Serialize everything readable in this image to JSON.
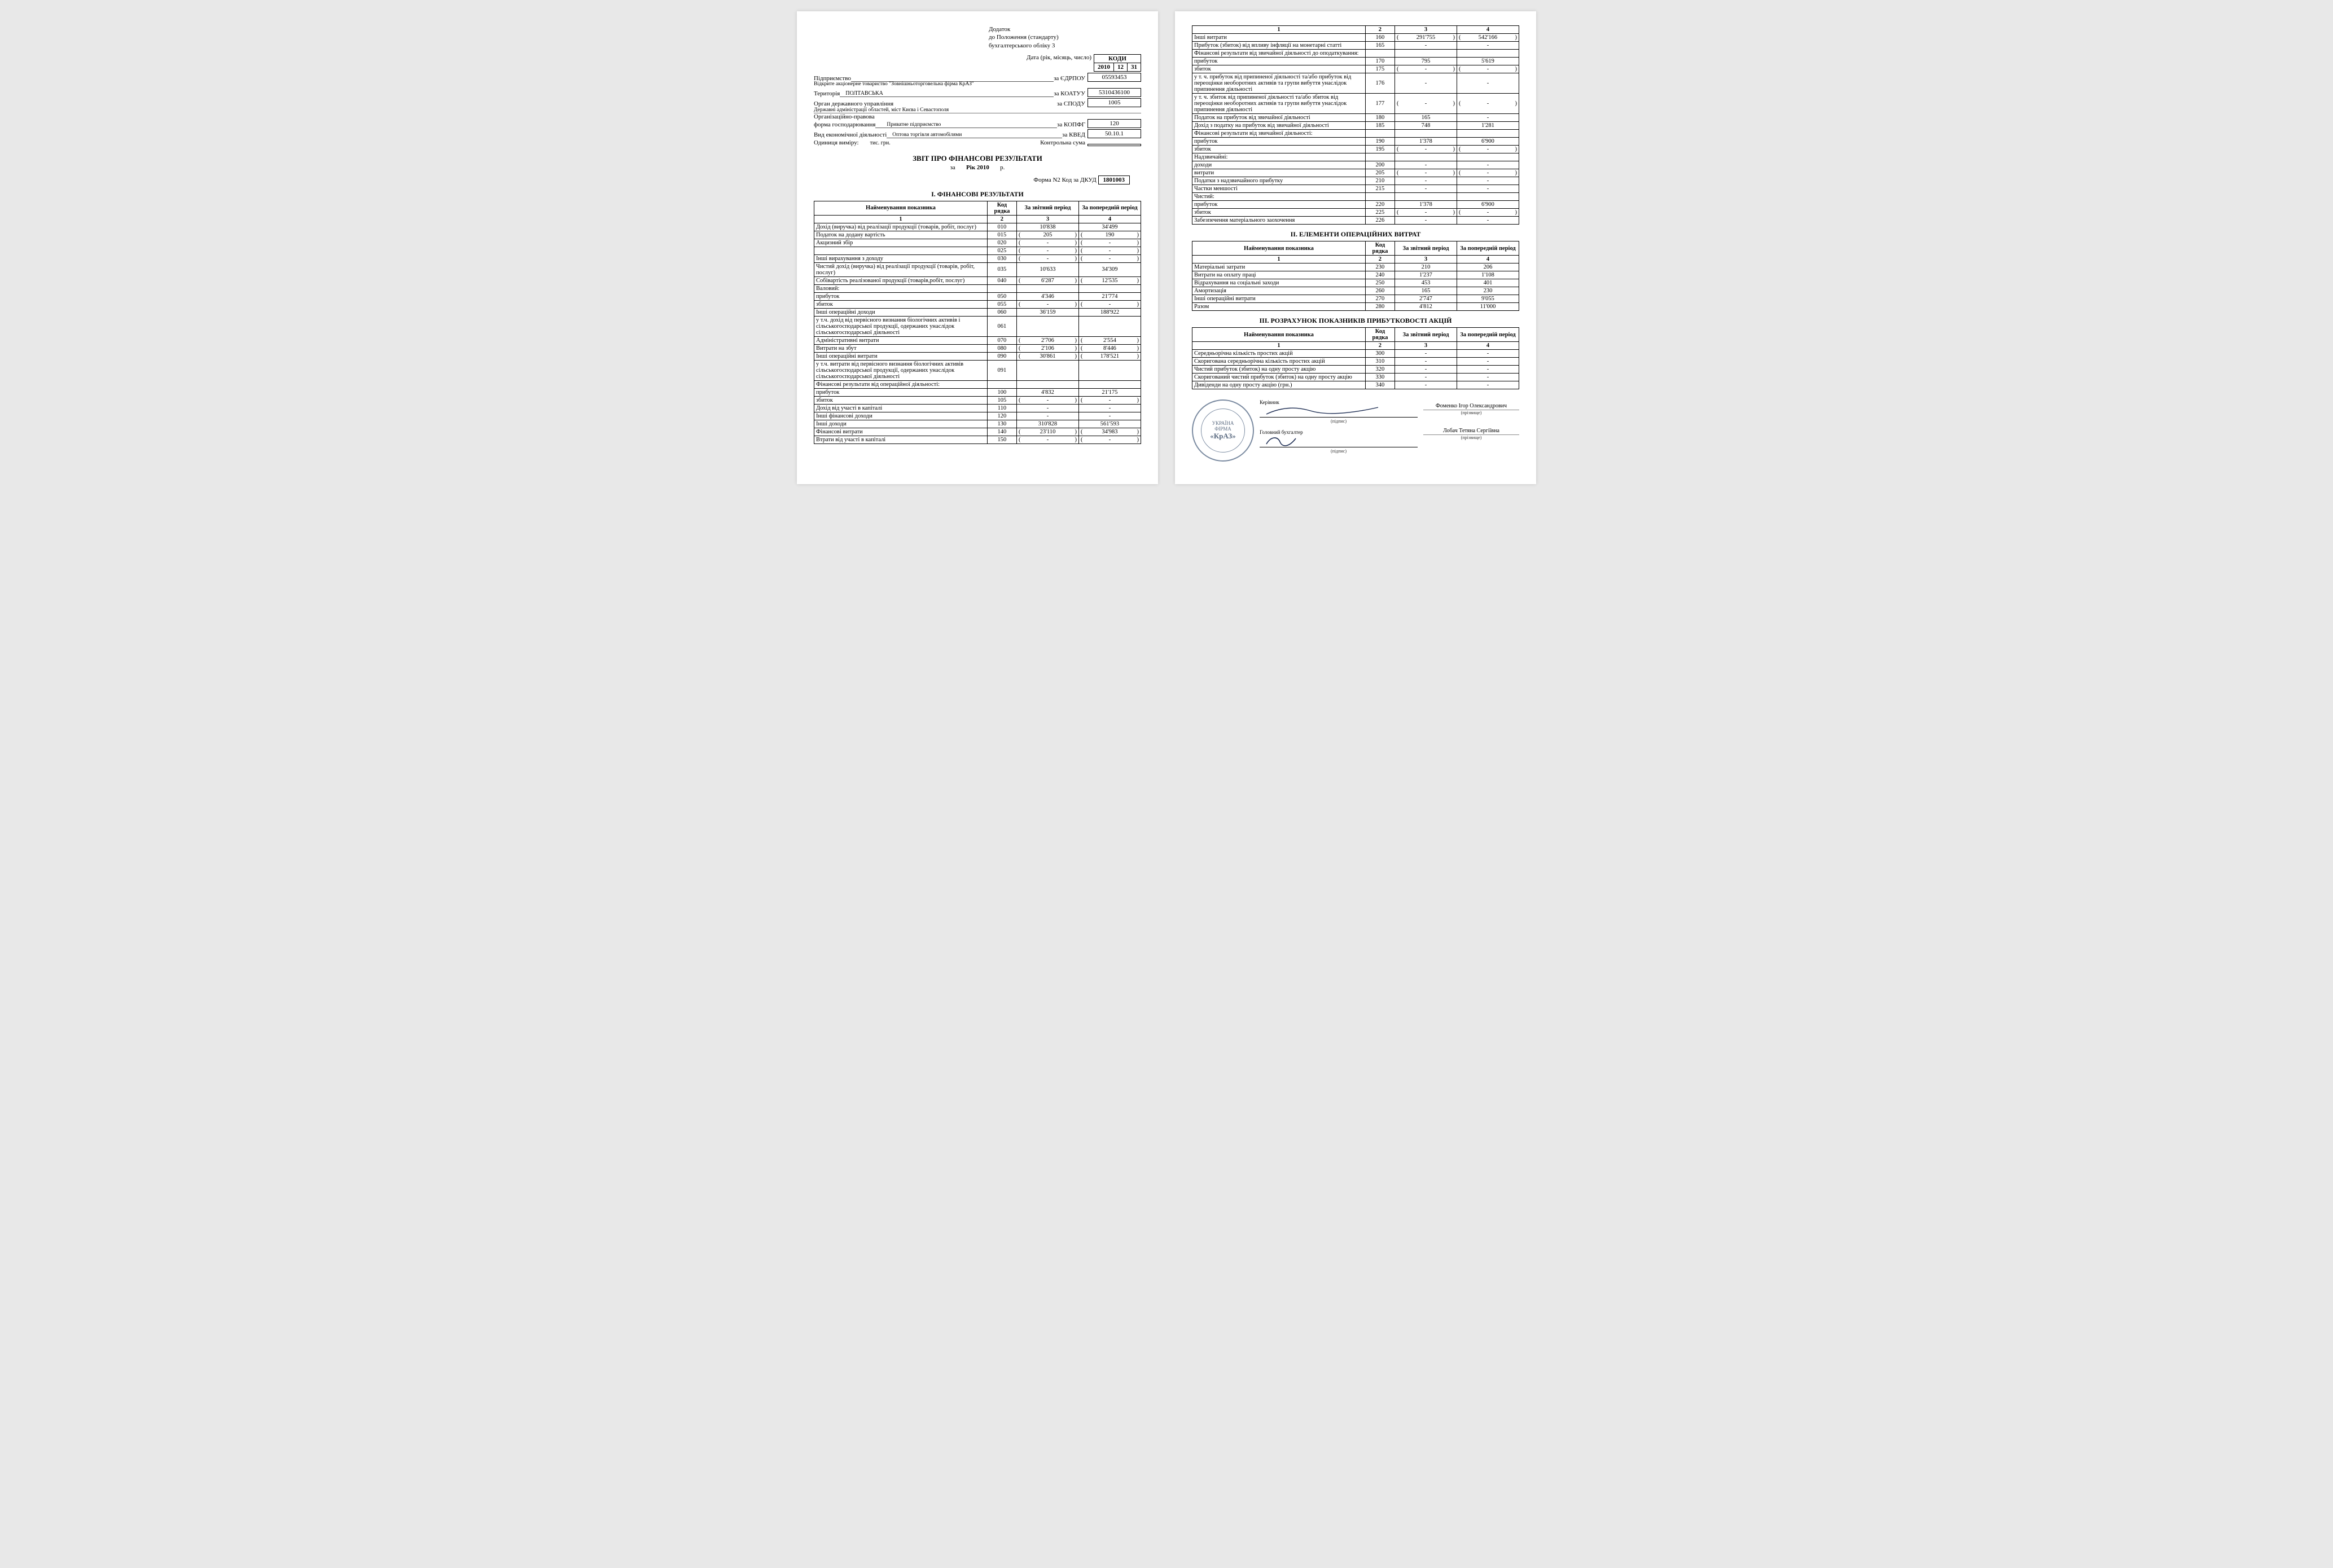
{
  "appendix": {
    "l1": "Додаток",
    "l2": "до Положення (стандарту)",
    "l3": "бухгалтерського обліку 3"
  },
  "codes_header": "КОДИ",
  "date_label": "Дата (рік, місяць, число)",
  "date": {
    "y": "2010",
    "m": "12",
    "d": "31"
  },
  "hdr": {
    "ent_label": "Підприємство",
    "ent_val": "Відкрите акціонерне товариство \"Зовнішньоторговельна фірма КрАЗ\"",
    "ent_code_label": "за ЄДРПОУ",
    "ent_code": "05593453",
    "terr_label": "Територія",
    "terr_val": "ПОЛТАВСЬКА",
    "terr_code_label": "за КОАТУУ",
    "terr_code": "5310436100",
    "org_label": "Орган державного управління",
    "org_val": "Державні адміністрації областей, міст Києва і Севастополя",
    "org_code_label": "за СПОДУ",
    "org_code": "1005",
    "form_label": "Організаційно-правова",
    "form_label2": "форма господарювання",
    "form_val": "Приватне підприємство",
    "form_code_label": "за КОПФГ",
    "form_code": "120",
    "act_label": "Вид економічної діяльності",
    "act_val": "Оптова торгівля автомобілями",
    "act_code_label": "за КВЕД",
    "act_code": "50.10.1",
    "unit_label": "Одиниця виміру:",
    "unit_val": "тис. грн.",
    "ctrl_label": "Контрольна сума",
    "ctrl_val": ""
  },
  "title": "ЗВІТ ПРО ФІНАНСОВІ РЕЗУЛЬТАТИ",
  "subtitle_prefix": "за",
  "subtitle_period": "Рік 2010",
  "subtitle_suffix": "р.",
  "form_n": "Форма N2  Код за ДКУД",
  "form_code": "1801003",
  "sect1": "І. ФІНАНСОВІ РЕЗУЛЬТАТИ",
  "cols": {
    "name": "Найменування показника",
    "code": "Код рядка",
    "cur": "За звітний період",
    "prev": "За попередній період",
    "n1": "1",
    "n2": "2",
    "n3": "3",
    "n4": "4"
  },
  "rows1": [
    {
      "name": "Дохід (виручка) від реалізації продукції (товарів, робіт, послуг)",
      "code": "010",
      "cur": "10'838",
      "prev": "34'499"
    },
    {
      "name": "Податок на додану вартість",
      "code": "015",
      "cur": "205",
      "prev": "190",
      "paren": true
    },
    {
      "name": "Акцизний збір",
      "code": "020",
      "cur": "-",
      "prev": "-",
      "paren": true
    },
    {
      "name": "",
      "code": "025",
      "cur": "-",
      "prev": "-",
      "paren": true
    },
    {
      "name": "Інші вирахування з доходу",
      "code": "030",
      "cur": "-",
      "prev": "-",
      "paren": true
    },
    {
      "name": "Чистий дохід (виручка) від реалізації продукції (товарів, робіт, послуг)",
      "code": "035",
      "cur": "10'633",
      "prev": "34'309"
    },
    {
      "name": "Собівартість реалізованої продукції (товарів,робіт, послуг)",
      "code": "040",
      "cur": "6'287",
      "prev": "12'535",
      "paren": true
    },
    {
      "name": "Валовий:",
      "plain": true
    },
    {
      "name": "прибуток",
      "indent": true,
      "code": "050",
      "cur": "4'346",
      "prev": "21'774"
    },
    {
      "name": "збиток",
      "indent": true,
      "code": "055",
      "cur": "-",
      "prev": "-",
      "paren": true
    },
    {
      "name": "Інші операційні доходи",
      "code": "060",
      "cur": "36'159",
      "prev": "188'922"
    },
    {
      "name": "у т.ч. дохід від первісного визнання біологічних активів і сільськогосподарської продукції, одержаних унаслідок сільськогосподарської діяльності",
      "indent": true,
      "code": "061",
      "cur": "",
      "prev": ""
    },
    {
      "name": "Адміністративні витрати",
      "code": "070",
      "cur": "2'706",
      "prev": "2'554",
      "paren": true
    },
    {
      "name": "Витрати на збут",
      "code": "080",
      "cur": "2'106",
      "prev": "8'446",
      "paren": true
    },
    {
      "name": "Інші операційні витрати",
      "code": "090",
      "cur": "30'861",
      "prev": "178'521",
      "paren": true
    },
    {
      "name": "у т.ч. витрати від первісного визнання біологічних активів сільськогосподарської продукції, одержаних унаслідок сільськогосподарської діяльності",
      "indent": true,
      "code": "091",
      "cur": "",
      "prev": ""
    },
    {
      "name": "Фінансові результати від операційної діяльності:",
      "plain": true
    },
    {
      "name": "прибуток",
      "indent": true,
      "code": "100",
      "cur": "4'832",
      "prev": "21'175"
    },
    {
      "name": "збиток",
      "indent": true,
      "code": "105",
      "cur": "-",
      "prev": "-",
      "paren": true
    },
    {
      "name": "Дохід від участі в капіталі",
      "code": "110",
      "cur": "-",
      "prev": "-"
    },
    {
      "name": "Інші фінансові доходи",
      "code": "120",
      "cur": "-",
      "prev": "-"
    },
    {
      "name": "Інші доходи",
      "code": "130",
      "cur": "310'828",
      "prev": "561'593"
    },
    {
      "name": "Фінансові витрати",
      "code": "140",
      "cur": "23'110",
      "prev": "34'983",
      "paren": true
    },
    {
      "name": "Втрати від участі в капіталі",
      "code": "150",
      "cur": "-",
      "prev": "-",
      "paren": true
    }
  ],
  "rows1b": [
    {
      "name": "Інші витрати",
      "code": "160",
      "cur": "291'755",
      "prev": "542'166",
      "paren": true
    },
    {
      "name": "Прибуток (збиток) від впливу інфляції на монетарні статті",
      "code": "165",
      "cur": "-",
      "prev": "-"
    },
    {
      "name": "Фінансові результати від звичайної діяльності до оподаткування:",
      "plain": true
    },
    {
      "name": "прибуток",
      "indent": true,
      "code": "170",
      "cur": "795",
      "prev": "5'619"
    },
    {
      "name": "збиток",
      "indent": true,
      "code": "175",
      "cur": "-",
      "prev": "-",
      "paren": true
    },
    {
      "name": "у т. ч. прибуток від припиненої діяльності та/або прибуток від переоцінки необоротних  активів та групи вибуття унаслідок припинення діяльності",
      "indent": true,
      "code": "176",
      "cur": "-",
      "prev": "-"
    },
    {
      "name": "у т. ч. збиток від припиненої діяльності та/або збиток від переоцінки необоротних активів та групи вибуття унаслідок припинення діяльності",
      "indent": true,
      "code": "177",
      "cur": "-",
      "prev": "-",
      "paren": true
    },
    {
      "name": "Податок на прибуток від звичайної діяльності",
      "code": "180",
      "cur": "165",
      "prev": "-"
    },
    {
      "name": "Дохід з податку на прибуток від звичайної діяльності",
      "code": "185",
      "cur": "748",
      "prev": "1'281"
    },
    {
      "name": "Фінансові результати від звичайної діяльності:",
      "plain": true
    },
    {
      "name": "прибуток",
      "indent": true,
      "code": "190",
      "cur": "1'378",
      "prev": "6'900"
    },
    {
      "name": "збиток",
      "indent": true,
      "code": "195",
      "cur": "-",
      "prev": "-",
      "paren": true
    },
    {
      "name": "Надзвичайні:",
      "plain": true
    },
    {
      "name": "доходи",
      "indent": true,
      "code": "200",
      "cur": "-",
      "prev": "-"
    },
    {
      "name": "витрати",
      "indent": true,
      "code": "205",
      "cur": "-",
      "prev": "-",
      "paren": true
    },
    {
      "name": "Податки з надзвичайного прибутку",
      "code": "210",
      "cur": "-",
      "prev": "-"
    },
    {
      "name": "Частки меншості",
      "code": "215",
      "cur": "-",
      "prev": "-"
    },
    {
      "name": "Чистий:",
      "plain": true
    },
    {
      "name": "прибуток",
      "indent": true,
      "code": "220",
      "cur": "1'378",
      "prev": "6'900"
    },
    {
      "name": "збиток",
      "indent": true,
      "code": "225",
      "cur": "-",
      "prev": "-",
      "paren": true
    },
    {
      "name": "Забезпечення матеріального заохочення",
      "code": "226",
      "cur": "-",
      "prev": "-"
    }
  ],
  "sect2": "ІІ. ЕЛЕМЕНТИ ОПЕРАЦІЙНИХ ВИТРАТ",
  "rows2": [
    {
      "name": "Матеріальні затрати",
      "code": "230",
      "cur": "210",
      "prev": "206"
    },
    {
      "name": "Витрати на оплату праці",
      "code": "240",
      "cur": "1'237",
      "prev": "1'108"
    },
    {
      "name": "Відрахування на соціальні заходи",
      "code": "250",
      "cur": "453",
      "prev": "401"
    },
    {
      "name": "Амортизація",
      "code": "260",
      "cur": "165",
      "prev": "230"
    },
    {
      "name": "Інші операційні витрати",
      "code": "270",
      "cur": "2'747",
      "prev": "9'055"
    },
    {
      "name": "Разом",
      "code": "280",
      "cur": "4'812",
      "prev": "11'000"
    }
  ],
  "sect3": "ІІІ. РОЗРАХУНОК ПОКАЗНИКІВ ПРИБУТКОВОСТІ АКЦІЙ",
  "rows3": [
    {
      "name": "Середньорічна кількість простих акцій",
      "code": "300",
      "cur": "-",
      "prev": "-"
    },
    {
      "name": "Скоригована середньорічна кількість простих акцій",
      "code": "310",
      "cur": "-",
      "prev": "-"
    },
    {
      "name": "Чистий прибуток (збиток) на одну просту акцію",
      "code": "320",
      "cur": "-",
      "prev": "-"
    },
    {
      "name": "Скоригований чистий прибуток (збиток) на одну просту акцію",
      "code": "330",
      "cur": "-",
      "prev": "-"
    },
    {
      "name": "Дивіденди на одну просту акцію (грн.)",
      "code": "340",
      "cur": "-",
      "prev": "-"
    }
  ],
  "sig": {
    "role1": "Керівник",
    "role2": "Головний бухгалтер",
    "cap": "(підпис)",
    "cap2": "(прізвище)",
    "name1": "Фоменко Ігор Олександрович",
    "name2": "Лобач Тетяна Сергіївна",
    "stamp_top": "УКРАЇНА",
    "stamp_mid": "ФІРМА",
    "stamp_big": "«КрАЗ»"
  }
}
